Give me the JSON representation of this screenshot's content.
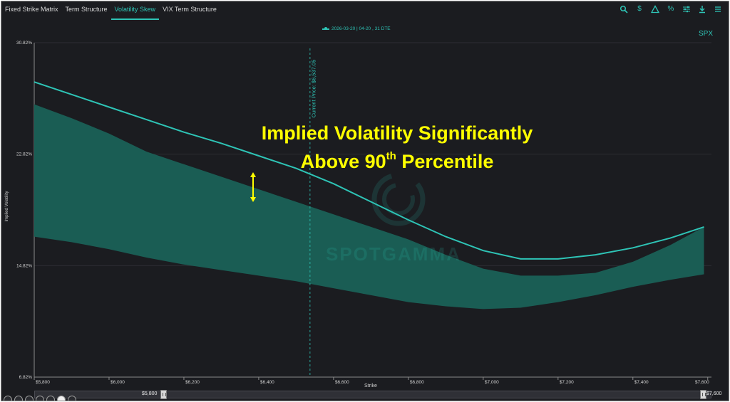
{
  "tabs": [
    {
      "label": "Fixed Strike Matrix",
      "active": false
    },
    {
      "label": "Term Structure",
      "active": false
    },
    {
      "label": "Volatility Skew",
      "active": true
    },
    {
      "label": "VIX Term Structure",
      "active": false
    }
  ],
  "toolbar": {
    "icons": [
      "search-icon",
      "dollar-icon",
      "triangle-icon",
      "percent-icon",
      "sliders-icon",
      "download-icon",
      "menu-icon"
    ],
    "dollar": "$",
    "percent": "%"
  },
  "legend": {
    "label": "2026-03-20 | 04-20 , 31 DTE"
  },
  "ticker": "SPX",
  "annotation": {
    "line1": "Implied Volatility Significantly",
    "line2_pre": "Above 90",
    "line2_sup": "th",
    "line2_post": " Percentile"
  },
  "watermark": "SPOTGAMMA",
  "current_price_label": "Current Price: $6,537.05",
  "slider": {
    "min_label": "$5,800",
    "max_label": "$7,600"
  },
  "colors": {
    "line": "#2ec4b6",
    "band": "#1a5d54",
    "accent": "#2ec4b6",
    "annotation": "#ffff00"
  },
  "chart_data": {
    "type": "line",
    "xlabel": "Strike",
    "ylabel": "Implied Volatility",
    "xlim": [
      5800,
      7610
    ],
    "ylim": [
      6.82,
      30.82
    ],
    "x_ticks": [
      5800,
      6000,
      6200,
      6400,
      6600,
      6800,
      7000,
      7200,
      7400,
      7600
    ],
    "x_tick_labels": [
      "$5,800",
      "$6,000",
      "$6,200",
      "$6,400",
      "$6,600",
      "$6,800",
      "$7,000",
      "$7,200",
      "$7,400",
      "$7,600"
    ],
    "y_ticks": [
      6.82,
      14.82,
      22.82,
      30.82
    ],
    "y_tick_labels": [
      "6.82%",
      "14.82%",
      "22.82%",
      "30.82%"
    ],
    "current_price": 6537.05,
    "series": [
      {
        "name": "2026-03-20 | 04-20 , 31 DTE",
        "x": [
          5800,
          5900,
          6000,
          6100,
          6200,
          6300,
          6400,
          6500,
          6600,
          6700,
          6800,
          6900,
          7000,
          7100,
          7200,
          7300,
          7400,
          7500,
          7590
        ],
        "values": [
          28.0,
          27.1,
          26.2,
          25.3,
          24.4,
          23.6,
          22.7,
          21.8,
          20.7,
          19.4,
          18.1,
          16.9,
          15.9,
          15.3,
          15.3,
          15.6,
          16.1,
          16.8,
          17.6
        ]
      }
    ],
    "band": {
      "name": "Historical percentile range",
      "x": [
        5800,
        5900,
        6000,
        6100,
        6200,
        6300,
        6400,
        6500,
        6600,
        6700,
        6800,
        6900,
        7000,
        7100,
        7200,
        7300,
        7400,
        7500,
        7590
      ],
      "upper": [
        26.4,
        25.4,
        24.3,
        23.0,
        22.1,
        21.2,
        20.3,
        19.4,
        18.5,
        17.6,
        16.7,
        15.6,
        14.6,
        14.1,
        14.1,
        14.3,
        15.1,
        16.3,
        17.6
      ],
      "lower": [
        16.9,
        16.5,
        16.0,
        15.4,
        14.9,
        14.5,
        14.1,
        13.7,
        13.2,
        12.7,
        12.2,
        11.9,
        11.7,
        11.8,
        12.2,
        12.7,
        13.3,
        13.8,
        14.2
      ]
    }
  }
}
